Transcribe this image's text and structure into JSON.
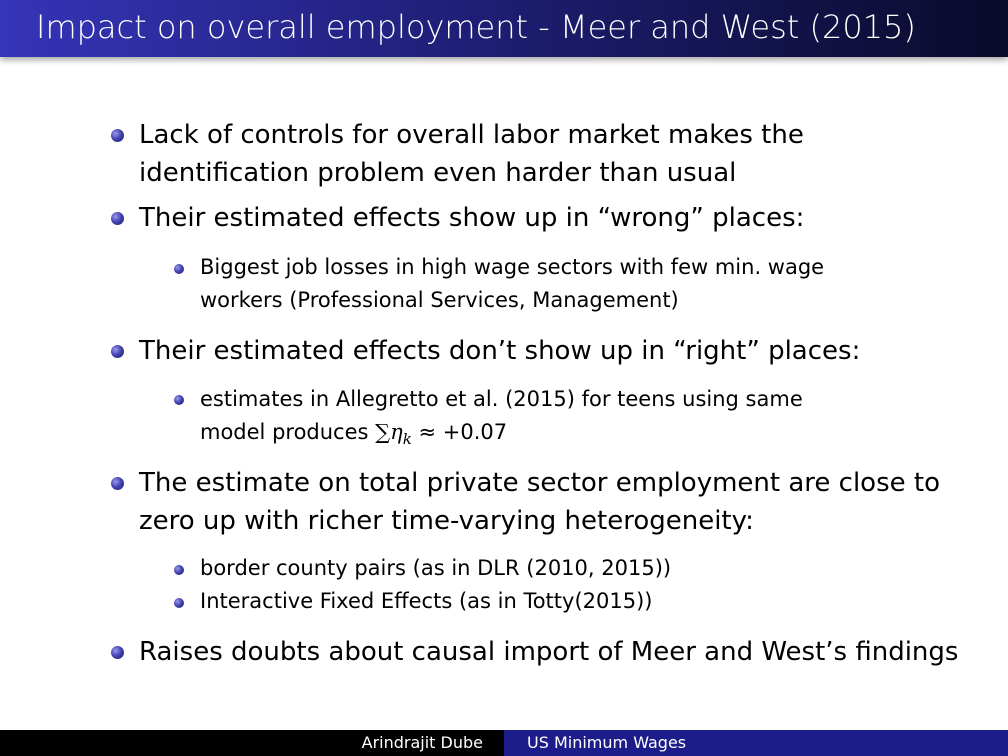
{
  "slide": {
    "title": "Impact on overall employment - Meer and West (2015)",
    "bullets": [
      {
        "lines": [
          "Lack of controls for overall labor market makes the",
          "identification problem even harder than usual"
        ],
        "sub": []
      },
      {
        "lines": [
          "Their estimated effects show up in “wrong” places:"
        ],
        "sub": [
          {
            "lines": [
              "Biggest job losses in high wage sectors with few min. wage",
              "workers (Professional Services, Management)"
            ]
          }
        ]
      },
      {
        "lines": [
          "Their estimated effects don’t show up in “right” places:"
        ],
        "sub": [
          {
            "lines": [
              "estimates in Allegretto et al. (2015) for teens using same"
            ],
            "math_prefix": "model produces ",
            "math": "∑η",
            "math_sub": "k",
            "math_suffix": " ≈ +0.07"
          }
        ]
      },
      {
        "lines": [
          "The estimate on total private sector employment are close to",
          "zero up with richer time-varying heterogeneity:"
        ],
        "sub": [
          {
            "lines": [
              "border county pairs (as in DLR (2010, 2015))"
            ]
          },
          {
            "lines": [
              "Interactive Fixed Effects (as in Totty(2015))"
            ]
          }
        ]
      },
      {
        "lines": [
          "Raises doubts about causal import of Meer and West’s findings"
        ],
        "sub": []
      }
    ]
  },
  "footer": {
    "author": "Arindrajit Dube",
    "talk": "US Minimum Wages"
  },
  "colors": {
    "title_bar_start": "#3535b8",
    "title_bar_end": "#0a0a2a",
    "footer_left": "#000000",
    "footer_right": "#1c1c8a",
    "bullet": "#4545b5"
  }
}
